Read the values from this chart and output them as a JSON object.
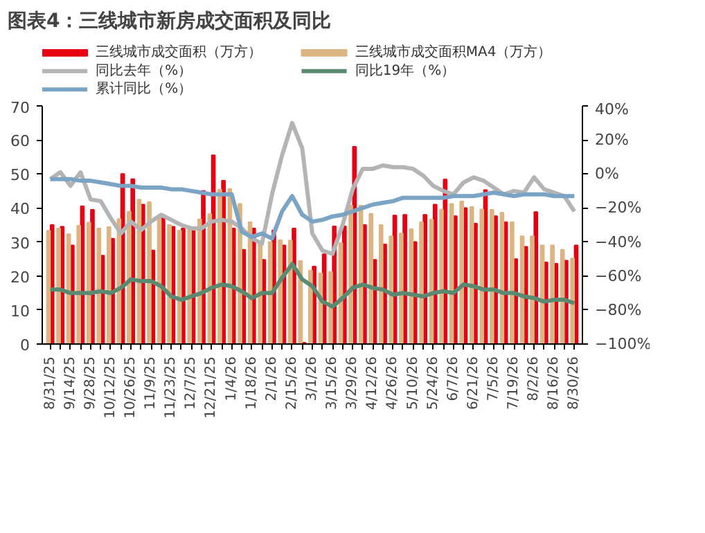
{
  "chart_data": {
    "type": "bar",
    "title": "图表4：三线城市新房成交面积及同比",
    "categories": [
      "8/31/25",
      null,
      "9/14/25",
      null,
      "9/28/25",
      null,
      "10/12/25",
      null,
      "10/26/25",
      null,
      "11/9/25",
      null,
      "11/23/25",
      null,
      "12/7/25",
      null,
      "12/21/25",
      null,
      "1/4/26",
      null,
      "1/18/26",
      null,
      "2/1/26",
      null,
      "2/15/26",
      null,
      "3/1/26",
      null,
      "3/15/26",
      null,
      "3/29/26",
      null,
      "4/12/26",
      null,
      "4/26/26",
      null,
      "5/10/26",
      null,
      "5/24/26",
      null,
      "6/7/26",
      null,
      "6/21/26",
      null,
      "7/5/26",
      null,
      "7/19/26",
      null,
      "8/2/26",
      null,
      "8/16/26",
      null,
      "8/30/26"
    ],
    "series": [
      {
        "name": "三线城市成交面积（万方）",
        "color": "#e60012",
        "values": [
          35,
          34.5,
          29,
          40.5,
          39.5,
          26,
          31,
          50,
          48.5,
          41,
          27.5,
          38,
          34.5,
          34,
          34,
          45,
          55.5,
          48,
          34,
          27.7,
          34,
          24.8,
          33.4,
          29,
          34,
          0.4,
          22.8,
          26.4,
          34.6,
          34.6,
          58,
          35,
          24.8,
          29.3,
          37.8,
          38,
          30,
          38,
          41,
          48.4,
          37.6,
          40,
          35.4,
          45.3,
          37.6,
          35.8,
          25,
          28.6,
          38.8,
          24,
          23.6,
          24.5,
          29
        ]
      },
      {
        "name": "三线城市成交面积MA4（万方）",
        "color": "#dcb482",
        "values": [
          33.3,
          34,
          32.3,
          34.8,
          35.7,
          34,
          34.4,
          36.8,
          38.9,
          42.5,
          41.7,
          37.4,
          35,
          33.3,
          34,
          36.7,
          38.2,
          45.4,
          45.6,
          41.2,
          35.8,
          30,
          30,
          30.5,
          30.4,
          24.4,
          21.6,
          20.8,
          21.2,
          29.7,
          40.7,
          40.7,
          38.3,
          35,
          31.7,
          32.5,
          33.8,
          35.8,
          36.6,
          39.5,
          41.2,
          41.9,
          40.3,
          39.6,
          39.5,
          38.6,
          35.8,
          31.7,
          31.7,
          29,
          29,
          27.7,
          25.2
        ]
      },
      {
        "name": "同比去年（%）",
        "type": "line",
        "axis": "y2",
        "color": "#b4b4b4",
        "values": [
          -3,
          1,
          -7,
          1,
          -15,
          -16,
          -26,
          -35,
          -28,
          -33,
          -28,
          -24,
          -27,
          -30,
          -32,
          -32,
          -28,
          -27,
          -28,
          -32,
          -38,
          -41,
          -12,
          11,
          30,
          15,
          -35,
          -45,
          -47,
          -30,
          -9,
          3,
          3,
          5,
          4,
          4,
          3,
          -1,
          -7,
          -10,
          -12,
          -5,
          -2,
          -4,
          -8,
          -12,
          -10,
          -11,
          -2,
          -9,
          -11,
          -13,
          -22
        ]
      },
      {
        "name": "同比19年（%）",
        "type": "line",
        "axis": "y2",
        "color": "#5a8a72",
        "values": [
          -68,
          -68,
          -70,
          -70,
          -70,
          -69,
          -70,
          -67,
          -62,
          -63,
          -63,
          -66,
          -72,
          -74,
          -72,
          -70,
          -67,
          -65,
          -66,
          -69,
          -73,
          -70,
          -70,
          -61,
          -53,
          -62,
          -66,
          -75,
          -78,
          -73,
          -67,
          -65,
          -67,
          -68,
          -71,
          -70,
          -71,
          -72,
          -70,
          -69,
          -70,
          -65,
          -66,
          -68,
          -68,
          -70,
          -70,
          -72,
          -73,
          -75,
          -74,
          -74,
          -76
        ]
      },
      {
        "name": "累计同比（%）",
        "type": "line",
        "axis": "y2",
        "color": "#7ba3c4",
        "values": [
          -3,
          -3,
          -3,
          -4,
          -4,
          -5,
          -6,
          -7,
          -7,
          -8,
          -8,
          -8,
          -9,
          -9,
          -10,
          -11,
          -12,
          -12,
          -12,
          -34,
          -37,
          -35,
          -38,
          -22,
          -13,
          -24,
          -28,
          -27,
          -25,
          -24,
          -22,
          -20,
          -18,
          -17,
          -16,
          -14,
          -14,
          -14,
          -14,
          -14,
          -13,
          -13,
          -13,
          -12,
          -11,
          -12,
          -13,
          -12,
          -12,
          -12,
          -13,
          -13,
          -13
        ]
      }
    ],
    "ylim": [
      0,
      70
    ],
    "yticks": [
      0,
      10,
      20,
      30,
      40,
      50,
      60,
      70
    ],
    "y2lim": [
      -100,
      40
    ],
    "y2ticks": [
      {
        "value": 40,
        "label": "40%"
      },
      {
        "value": 20,
        "label": "20%"
      },
      {
        "value": 0,
        "label": "0%"
      },
      {
        "value": -20,
        "label": "−20%"
      },
      {
        "value": -40,
        "label": "−40%"
      },
      {
        "value": -60,
        "label": "−60%"
      },
      {
        "value": -80,
        "label": "−80%"
      },
      {
        "value": -100,
        "label": "−100%"
      }
    ],
    "legend": "top",
    "grid": false
  }
}
